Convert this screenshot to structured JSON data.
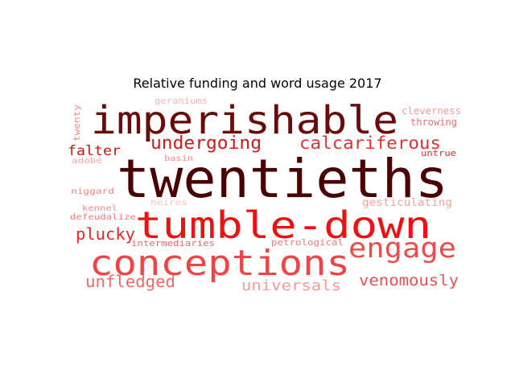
{
  "chart_data": {
    "type": "wordcloud",
    "title": "Relative funding and word usage 2017",
    "colormap": "reds",
    "words": [
      {
        "text": "twentieths",
        "weight": 100,
        "color": "#4a0000",
        "orientation": "horizontal"
      },
      {
        "text": "tumble-down",
        "weight": 72,
        "color": "#ee1111",
        "orientation": "horizontal"
      },
      {
        "text": "imperishable",
        "weight": 70,
        "color": "#6b0a0a",
        "orientation": "horizontal"
      },
      {
        "text": "conceptions",
        "weight": 66,
        "color": "#f24444",
        "orientation": "horizontal"
      },
      {
        "text": "engage",
        "weight": 48,
        "color": "#f04a4a",
        "orientation": "horizontal"
      },
      {
        "text": "calcariferous",
        "weight": 30,
        "color": "#e03232",
        "orientation": "horizontal"
      },
      {
        "text": "undergoing",
        "weight": 30,
        "color": "#d01a1a",
        "orientation": "horizontal"
      },
      {
        "text": "unfledged",
        "weight": 28,
        "color": "#f26a6a",
        "orientation": "horizontal"
      },
      {
        "text": "venomously",
        "weight": 27,
        "color": "#f05050",
        "orientation": "horizontal"
      },
      {
        "text": "universals",
        "weight": 25,
        "color": "#f89a9a",
        "orientation": "horizontal"
      },
      {
        "text": "plucky",
        "weight": 26,
        "color": "#e02a2a",
        "orientation": "horizontal"
      },
      {
        "text": "falter",
        "weight": 23,
        "color": "#cc1414",
        "orientation": "horizontal"
      },
      {
        "text": "gesticulating",
        "weight": 18,
        "color": "#f7a0a0",
        "orientation": "horizontal"
      },
      {
        "text": "cleverness",
        "weight": 16,
        "color": "#f59a9a",
        "orientation": "horizontal"
      },
      {
        "text": "throwing",
        "weight": 16,
        "color": "#f07070",
        "orientation": "horizontal"
      },
      {
        "text": "untrue",
        "weight": 14,
        "color": "#e03030",
        "orientation": "horizontal"
      },
      {
        "text": "petrological",
        "weight": 14,
        "color": "#f27a7a",
        "orientation": "horizontal"
      },
      {
        "text": "intermediaries",
        "weight": 14,
        "color": "#f26a6a",
        "orientation": "horizontal"
      },
      {
        "text": "geraniums",
        "weight": 14,
        "color": "#f8b4b4",
        "orientation": "horizontal"
      },
      {
        "text": "niggard",
        "weight": 13,
        "color": "#f28080",
        "orientation": "horizontal"
      },
      {
        "text": "defeudalize",
        "weight": 13,
        "color": "#f27878",
        "orientation": "horizontal"
      },
      {
        "text": "kennel",
        "weight": 12,
        "color": "#f58a8a",
        "orientation": "horizontal"
      },
      {
        "text": "heires",
        "weight": 12,
        "color": "#fbc2c2",
        "orientation": "horizontal"
      },
      {
        "text": "adobe",
        "weight": 12,
        "color": "#f7a4a4",
        "orientation": "horizontal"
      },
      {
        "text": "basin",
        "weight": 12,
        "color": "#f28a8a",
        "orientation": "horizontal"
      },
      {
        "text": "twenty",
        "weight": 12,
        "color": "#f28a8a",
        "orientation": "vertical"
      }
    ]
  }
}
